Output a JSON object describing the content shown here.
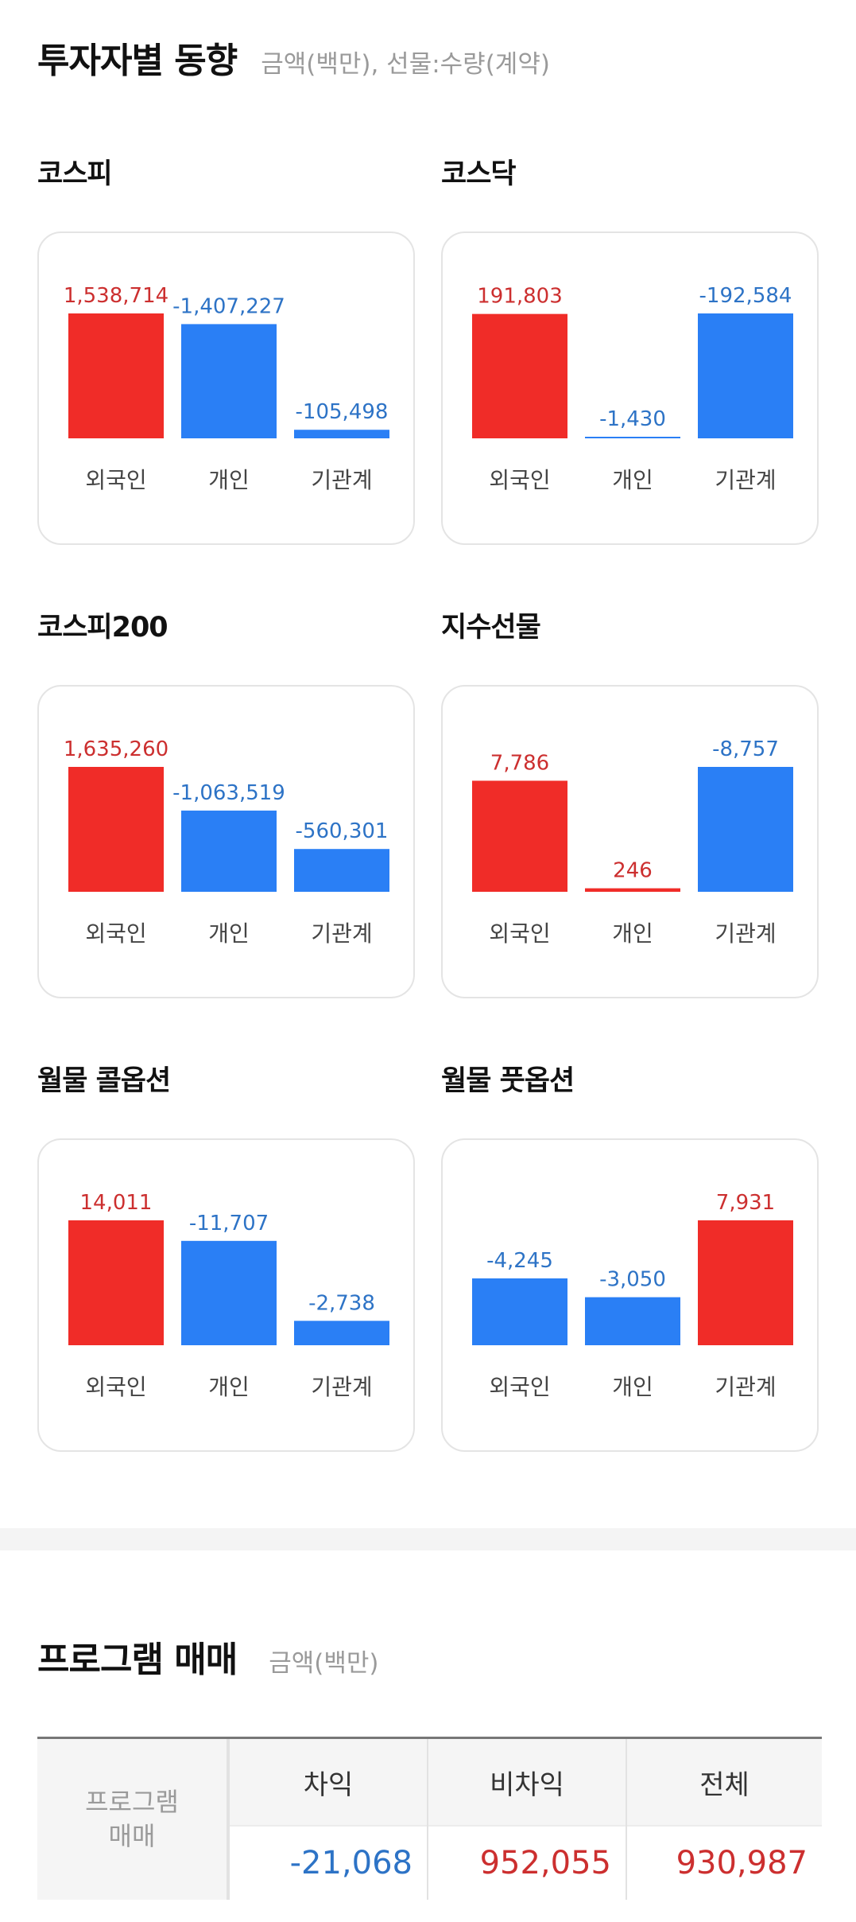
{
  "header": {
    "title": "투자자별 동향",
    "subtitle": "금액(백만), 선물:수량(계약)"
  },
  "colors": {
    "positive": "#f02c28",
    "negative": "#2a7ff5",
    "positive_text": "#cc2f2f",
    "negative_text": "#2d73c6"
  },
  "cards": [
    {
      "title": "코스피",
      "chart_data": {
        "type": "bar",
        "categories": [
          "외국인",
          "개인",
          "기관계"
        ],
        "values": [
          1538714,
          -1407227,
          -105498
        ],
        "labels": [
          "1,538,714",
          "-1,407,227",
          "-105,498"
        ]
      }
    },
    {
      "title": "코스닥",
      "chart_data": {
        "type": "bar",
        "categories": [
          "외국인",
          "개인",
          "기관계"
        ],
        "values": [
          191803,
          -1430,
          -192584
        ],
        "labels": [
          "191,803",
          "-1,430",
          "-192,584"
        ]
      }
    },
    {
      "title": "코스피200",
      "chart_data": {
        "type": "bar",
        "categories": [
          "외국인",
          "개인",
          "기관계"
        ],
        "values": [
          1635260,
          -1063519,
          -560301
        ],
        "labels": [
          "1,635,260",
          "-1,063,519",
          "-560,301"
        ]
      }
    },
    {
      "title": "지수선물",
      "chart_data": {
        "type": "bar",
        "categories": [
          "외국인",
          "개인",
          "기관계"
        ],
        "values": [
          7786,
          246,
          -8757
        ],
        "labels": [
          "7,786",
          "246",
          "-8,757"
        ]
      }
    },
    {
      "title": "월물 콜옵션",
      "chart_data": {
        "type": "bar",
        "categories": [
          "외국인",
          "개인",
          "기관계"
        ],
        "values": [
          14011,
          -11707,
          -2738
        ],
        "labels": [
          "14,011",
          "-11,707",
          "-2,738"
        ]
      }
    },
    {
      "title": "월물 풋옵션",
      "chart_data": {
        "type": "bar",
        "categories": [
          "외국인",
          "개인",
          "기관계"
        ],
        "values": [
          -4245,
          -3050,
          7931
        ],
        "labels": [
          "-4,245",
          "-3,050",
          "7,931"
        ]
      }
    }
  ],
  "program": {
    "title": "프로그램 매매",
    "subtitle": "금액(백만)",
    "row_label_line1": "프로그램",
    "row_label_line2": "매매",
    "columns": [
      {
        "header": "차익",
        "value": "-21,068",
        "sign": "negative"
      },
      {
        "header": "비차익",
        "value": "952,055",
        "sign": "positive"
      },
      {
        "header": "전체",
        "value": "930,987",
        "sign": "positive"
      }
    ]
  }
}
